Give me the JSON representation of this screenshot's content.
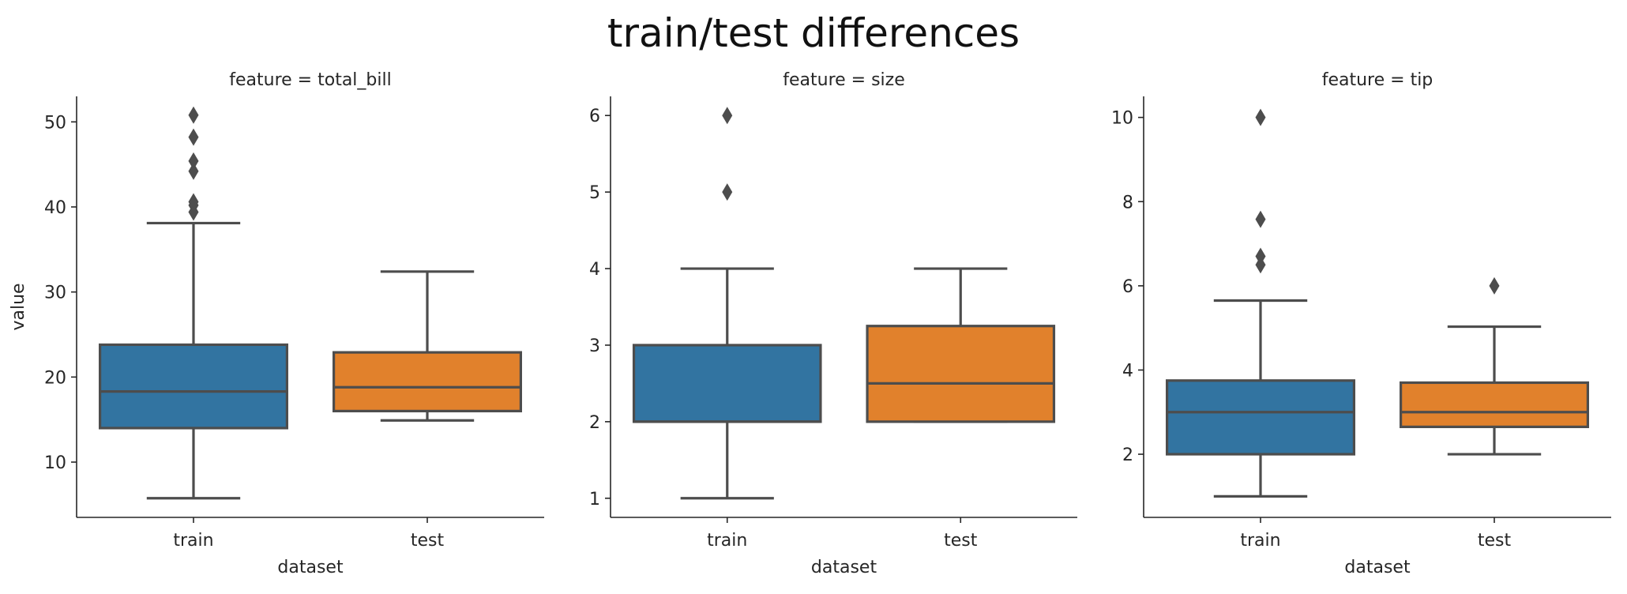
{
  "suptitle": "train/test differences",
  "colors": {
    "train": "#3274a1",
    "test": "#e1812c",
    "line": "#4d4d4d",
    "axis": "#262626"
  },
  "chart_data": {
    "type": "boxplot",
    "title": "train/test differences",
    "xlabel": "dataset",
    "ylabel": "value",
    "categories": [
      "train",
      "test"
    ],
    "grid": false,
    "panels": [
      {
        "title": "feature = total_bill",
        "ylim": [
          3.5,
          53
        ],
        "yticks": [
          10,
          20,
          30,
          40,
          50
        ],
        "boxes": [
          {
            "category": "train",
            "whisker_low": 5.75,
            "q1": 14.0,
            "median": 18.3,
            "q3": 23.8,
            "whisker_high": 38.1,
            "outliers": [
              39.4,
              40.2,
              40.6,
              44.2,
              45.4,
              48.2,
              50.8
            ]
          },
          {
            "category": "test",
            "whisker_low": 14.9,
            "q1": 16.0,
            "median": 18.8,
            "q3": 22.9,
            "whisker_high": 32.4,
            "outliers": []
          }
        ]
      },
      {
        "title": "feature = size",
        "ylim": [
          0.75,
          6.25
        ],
        "yticks": [
          1,
          2,
          3,
          4,
          5,
          6
        ],
        "boxes": [
          {
            "category": "train",
            "whisker_low": 1,
            "q1": 2,
            "median": 2,
            "q3": 3,
            "whisker_high": 4,
            "outliers": [
              5,
              6
            ]
          },
          {
            "category": "test",
            "whisker_low": 2,
            "q1": 2,
            "median": 2.5,
            "q3": 3.25,
            "whisker_high": 4,
            "outliers": []
          }
        ]
      },
      {
        "title": "feature = tip",
        "ylim": [
          0.5,
          10.5
        ],
        "yticks": [
          2,
          4,
          6,
          8,
          10
        ],
        "boxes": [
          {
            "category": "train",
            "whisker_low": 1.0,
            "q1": 2.0,
            "median": 3.0,
            "q3": 3.75,
            "whisker_high": 5.65,
            "outliers": [
              6.5,
              6.7,
              7.58,
              10.0
            ]
          },
          {
            "category": "test",
            "whisker_low": 2.0,
            "q1": 2.65,
            "median": 3.0,
            "q3": 3.7,
            "whisker_high": 5.03,
            "outliers": [
              6.0
            ]
          }
        ]
      }
    ]
  }
}
